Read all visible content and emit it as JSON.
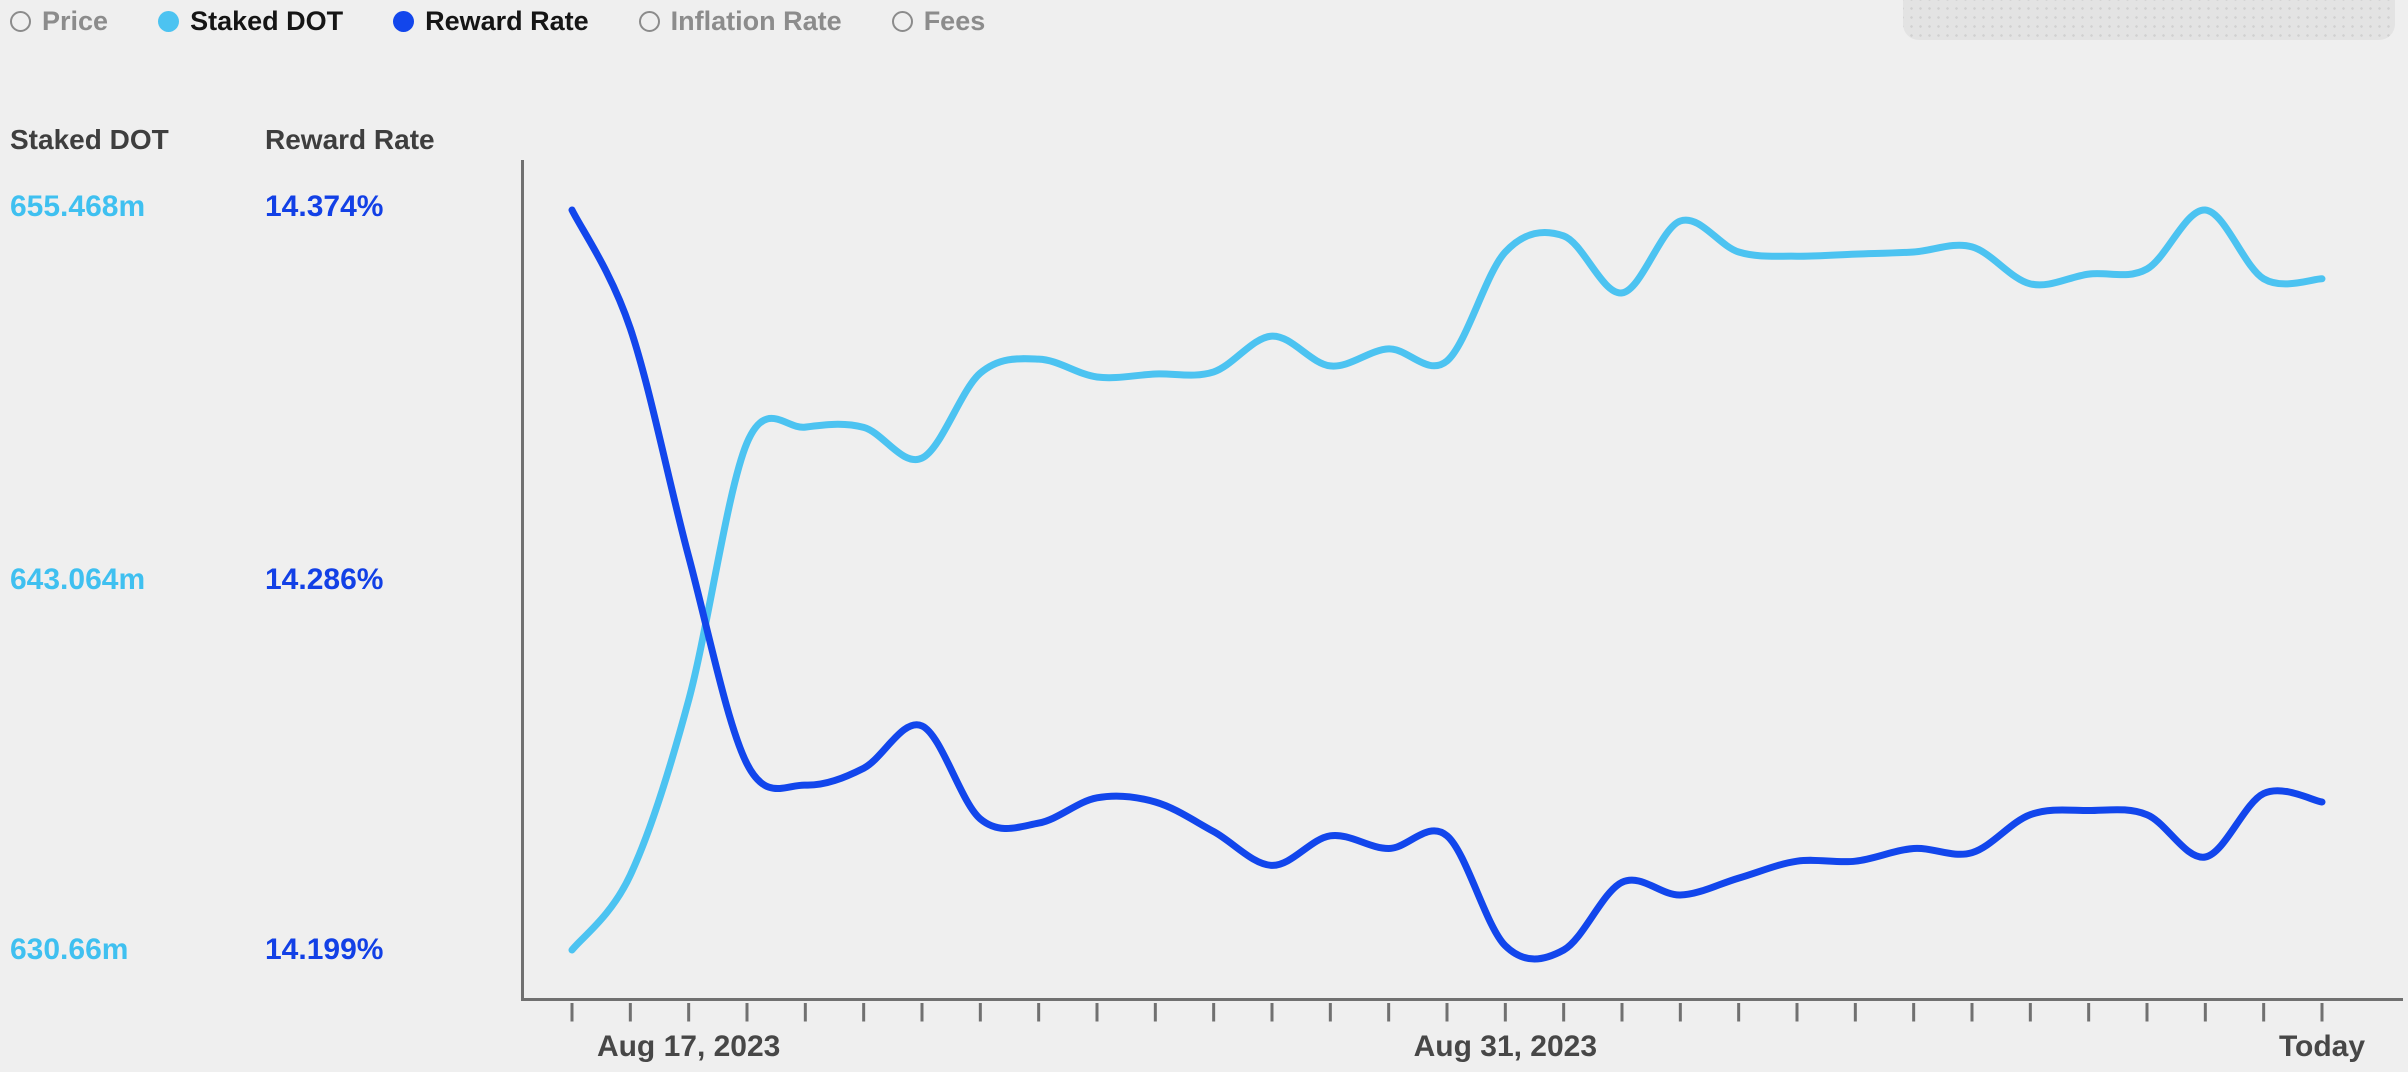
{
  "legend": {
    "items": [
      {
        "label": "Price",
        "active": false,
        "color": null
      },
      {
        "label": "Staked DOT",
        "active": true,
        "color": "#4cc3f1"
      },
      {
        "label": "Reward Rate",
        "active": true,
        "color": "#1246ec"
      },
      {
        "label": "Inflation Rate",
        "active": false,
        "color": null
      },
      {
        "label": "Fees",
        "active": false,
        "color": null
      }
    ]
  },
  "left_panel": {
    "columns": [
      {
        "header": "Staked DOT",
        "unit": "m",
        "ticks": [
          "655.468m",
          "643.064m",
          "630.66m"
        ]
      },
      {
        "header": "Reward Rate",
        "unit": "%",
        "ticks": [
          "14.374%",
          "14.286%",
          "14.199%"
        ]
      }
    ]
  },
  "x_axis": {
    "labels": [
      {
        "text": "Aug 17, 2023",
        "day_index": 2
      },
      {
        "text": "Aug 31, 2023",
        "day_index": 16
      },
      {
        "text": "Today",
        "day_index": 30
      }
    ],
    "tick_count": 31
  },
  "chart_data": {
    "type": "line",
    "x": [
      "Aug 15",
      "Aug 16",
      "Aug 17",
      "Aug 18",
      "Aug 19",
      "Aug 20",
      "Aug 21",
      "Aug 22",
      "Aug 23",
      "Aug 24",
      "Aug 25",
      "Aug 26",
      "Aug 27",
      "Aug 28",
      "Aug 29",
      "Aug 30",
      "Aug 31",
      "Sep 1",
      "Sep 2",
      "Sep 3",
      "Sep 4",
      "Sep 5",
      "Sep 6",
      "Sep 7",
      "Sep 8",
      "Sep 9",
      "Sep 10",
      "Sep 11",
      "Sep 12",
      "Sep 13",
      "Sep 14 (Today)"
    ],
    "series": [
      {
        "name": "Staked DOT",
        "color": "#4cc3f1",
        "unit": "m",
        "ylim": [
          630.66,
          655.468
        ],
        "gridline_values": [
          655.468,
          643.064,
          630.66
        ],
        "values": [
          630.66,
          633.17,
          639.04,
          647.66,
          648.19,
          648.18,
          647.15,
          650.0,
          650.47,
          649.87,
          649.97,
          650.04,
          651.24,
          650.24,
          650.81,
          650.41,
          654.06,
          654.6,
          652.69,
          655.1,
          654.06,
          653.92,
          653.99,
          654.06,
          654.23,
          652.99,
          653.32,
          653.49,
          655.468,
          653.16,
          653.16
        ]
      },
      {
        "name": "Reward Rate",
        "color": "#1246ec",
        "unit": "%",
        "ylim": [
          14.199,
          14.374
        ],
        "gridline_values": [
          14.374,
          14.286,
          14.199
        ],
        "values": [
          14.374,
          14.346,
          14.292,
          14.243,
          14.238,
          14.242,
          14.252,
          14.23,
          14.229,
          14.235,
          14.234,
          14.227,
          14.219,
          14.226,
          14.223,
          14.226,
          14.2,
          14.199,
          14.215,
          14.212,
          14.216,
          14.22,
          14.22,
          14.223,
          14.222,
          14.231,
          14.232,
          14.231,
          14.221,
          14.236,
          14.234
        ]
      }
    ],
    "title": "",
    "xlabel": "",
    "ylabel": "",
    "grid": false,
    "legend_position": "top-left"
  }
}
